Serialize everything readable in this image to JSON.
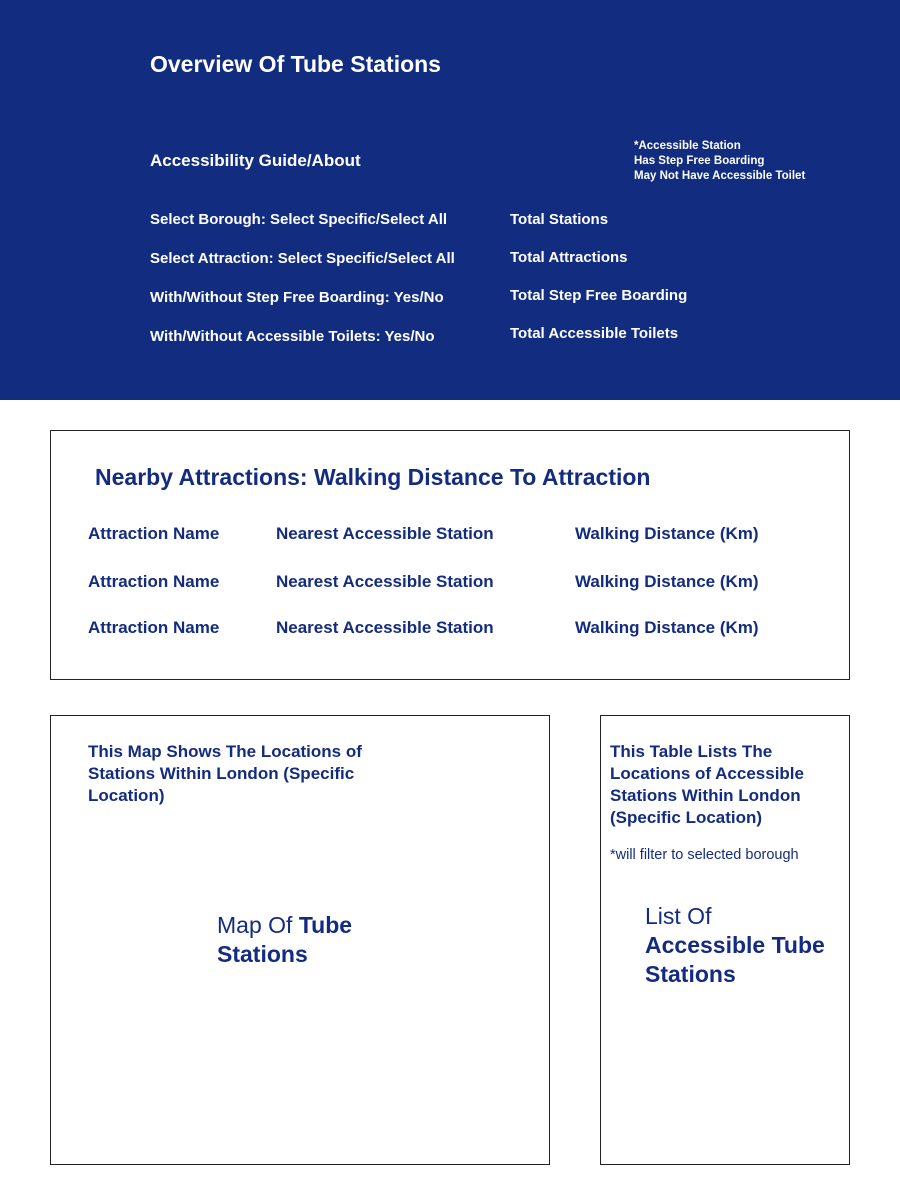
{
  "header": {
    "title": "Overview Of Tube Stations",
    "guide_link": "Accessibility Guide/About",
    "legend": [
      "*Accessible Station",
      "Has Step Free Boarding",
      "May Not Have Accessible Toilet"
    ],
    "filters": [
      "Select Borough: Select Specific/Select All",
      "Select Attraction: Select Specific/Select All",
      "With/Without Step Free Boarding: Yes/No",
      "With/Without Accessible Toilets: Yes/No"
    ],
    "totals": [
      "Total Stations",
      "Total Attractions",
      "Total Step Free Boarding",
      "Total Accessible Toilets"
    ]
  },
  "nearby": {
    "title": "Nearby Attractions: Walking Distance To Attraction",
    "rows": [
      [
        "Attraction Name",
        "Nearest Accessible Station",
        "Walking Distance (Km)"
      ],
      [
        "Attraction Name",
        "Nearest Accessible Station",
        "Walking Distance (Km)"
      ],
      [
        "Attraction Name",
        "Nearest Accessible Station",
        "Walking Distance (Km)"
      ]
    ]
  },
  "map": {
    "description": "This Map Shows The Locations of Stations Within London (Specific Location)",
    "placeholder_light": "Map Of ",
    "placeholder_bold": "Tube Stations"
  },
  "list": {
    "description": "This Table Lists The Locations of Accessible Stations Within London (Specific Location)",
    "note": "*will filter to selected borough",
    "placeholder_light": "List Of",
    "placeholder_bold": "Accessible Tube Stations"
  },
  "colors": {
    "primary": "#122d80",
    "background": "#ffffff"
  }
}
